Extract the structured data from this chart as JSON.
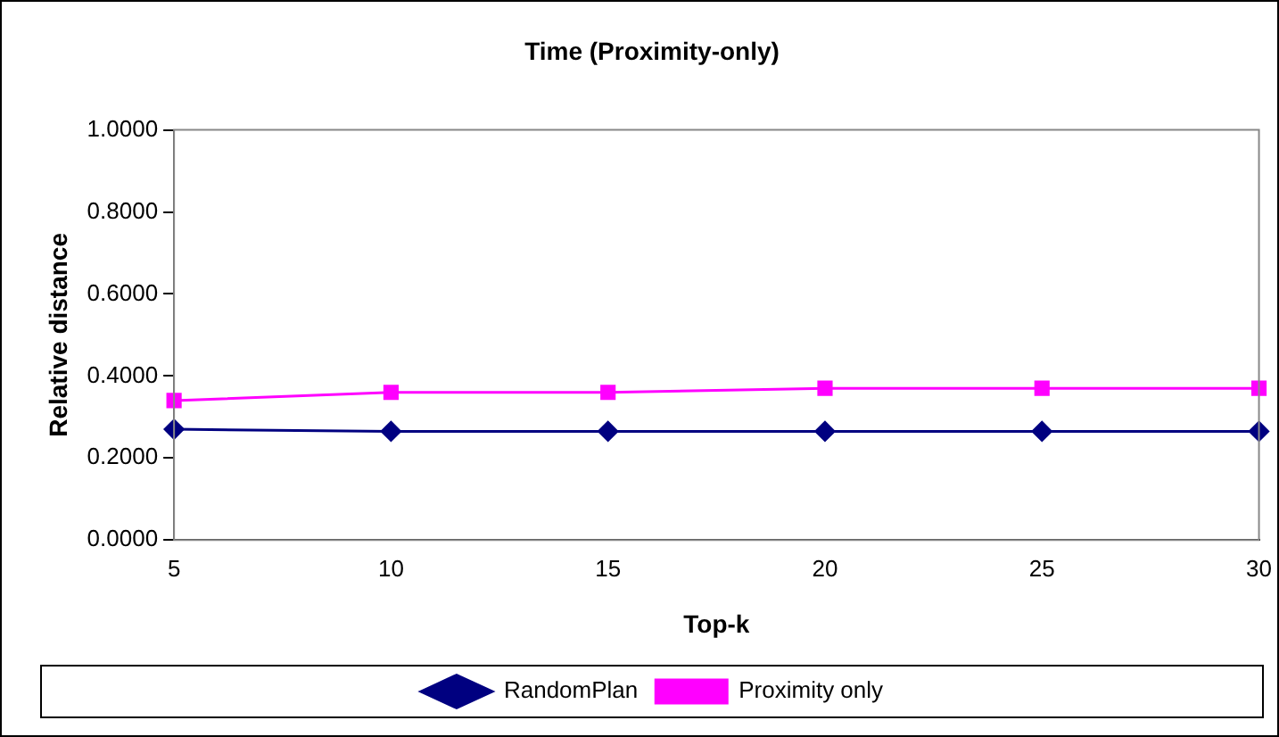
{
  "chart_data": {
    "type": "line",
    "title": "Time (Proximity-only)",
    "xlabel": "Top-k",
    "ylabel": "Relative distance",
    "categories": [
      "5",
      "10",
      "15",
      "20",
      "25",
      "30"
    ],
    "series": [
      {
        "name": "RandomPlan",
        "color": "#000080",
        "marker": "diamond",
        "values": [
          0.27,
          0.265,
          0.265,
          0.265,
          0.265,
          0.265
        ]
      },
      {
        "name": "Proximity only",
        "color": "#ff00ff",
        "marker": "square",
        "values": [
          0.34,
          0.36,
          0.36,
          0.37,
          0.37,
          0.37
        ]
      }
    ],
    "ylim": [
      0,
      1
    ],
    "yticks": [
      {
        "value": 0,
        "label": "0.0000"
      },
      {
        "value": 0.2,
        "label": "0.2000"
      },
      {
        "value": 0.4,
        "label": "0.4000"
      },
      {
        "value": 0.6,
        "label": "0.6000"
      },
      {
        "value": 0.8,
        "label": "0.8000"
      },
      {
        "value": 1,
        "label": "1.0000"
      }
    ],
    "grid": false,
    "legend": "bottom"
  }
}
